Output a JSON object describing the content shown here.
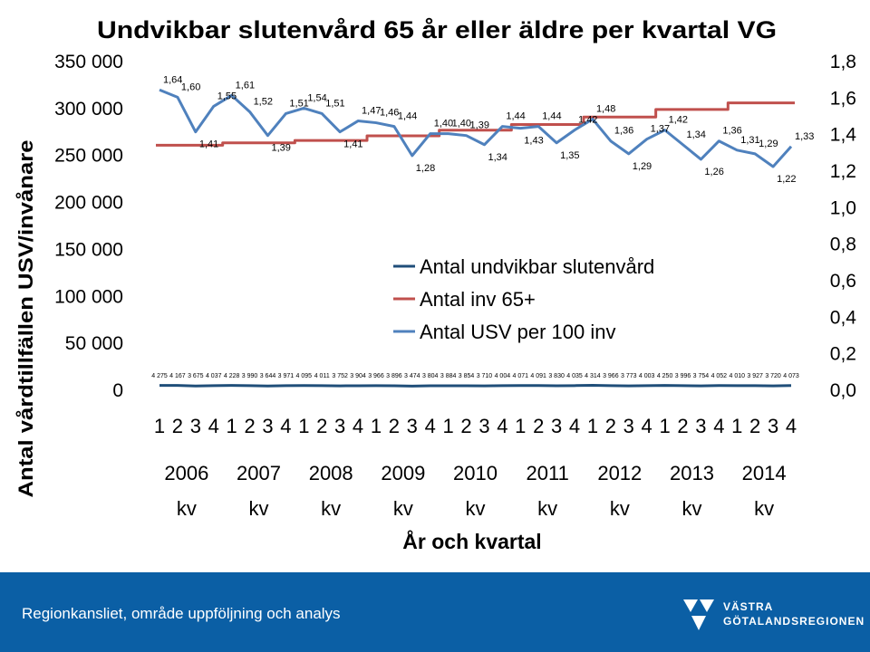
{
  "chart_data": {
    "type": "line",
    "title": "Undvikbar slutenvård 65 år eller äldre per kvartal VG",
    "ylabel": "Antal vårdtillfällen USV/invånare",
    "xlabel": "År och kvartal",
    "quarter_labels": [
      "1",
      "2",
      "3",
      "4",
      "1",
      "2",
      "3",
      "4",
      "1",
      "2",
      "3",
      "4",
      "1",
      "2",
      "3",
      "4",
      "1",
      "2",
      "3",
      "4",
      "1",
      "2",
      "3",
      "4",
      "1",
      "2",
      "3",
      "4",
      "1",
      "2",
      "3",
      "4",
      "1",
      "2",
      "3",
      "4"
    ],
    "year_labels": [
      {
        "year": "2006",
        "unit": "kv"
      },
      {
        "year": "2007",
        "unit": "kv"
      },
      {
        "year": "2008",
        "unit": "kv"
      },
      {
        "year": "2009",
        "unit": "kv"
      },
      {
        "year": "2010",
        "unit": "kv"
      },
      {
        "year": "2011",
        "unit": "kv"
      },
      {
        "year": "2012",
        "unit": "kv"
      },
      {
        "year": "2013",
        "unit": "kv"
      },
      {
        "year": "2014",
        "unit": "kv"
      }
    ],
    "y_left": {
      "ylim": [
        0,
        350000
      ],
      "ticks": [
        "0",
        "50 000",
        "100 000",
        "150 000",
        "200 000",
        "250 000",
        "300 000",
        "350 000"
      ]
    },
    "y_right": {
      "ylim": [
        0,
        1.8
      ],
      "ticks": [
        "0,0",
        "0,2",
        "0,4",
        "0,6",
        "0,8",
        "1,0",
        "1,2",
        "1,4",
        "1,6",
        "1,8"
      ]
    },
    "legend_position": "center",
    "series": [
      {
        "name": "Antal undvikbar slutenvård",
        "axis": "left",
        "color": "#1f4e79",
        "values": [
          4275,
          4167,
          3675,
          4037,
          4228,
          3990,
          3644,
          3971,
          4095,
          4011,
          3752,
          3904,
          3966,
          3896,
          3474,
          3804,
          3884,
          3854,
          3710,
          4004,
          4071,
          4091,
          3830,
          4035,
          4314,
          3966,
          3773,
          4003,
          4250,
          3996,
          3754,
          4052,
          4010,
          3927,
          3720,
          4073
        ],
        "labels": [
          "4 275",
          "4 167",
          "3 675",
          "4 037",
          "4 228",
          "3 990",
          "3 644",
          "3 971",
          "4 095",
          "4 011",
          "3 752",
          "3 904",
          "3 966",
          "3 896",
          "3 474",
          "3 804",
          "3 884",
          "3 854",
          "3 710",
          "4 004",
          "4 071",
          "4 091",
          "3 830",
          "4 035",
          "4 314",
          "3 966",
          "3 773",
          "4 003",
          "4 250",
          "3 996",
          "3 754",
          "4 052",
          "4 010",
          "3 927",
          "3 720",
          "4 073"
        ]
      },
      {
        "name": "Antal inv 65+",
        "axis": "left",
        "color": "#c0504d",
        "values": [
          260000,
          260000,
          260000,
          260000,
          262500,
          262500,
          262500,
          262500,
          265000,
          265000,
          265000,
          265000,
          270000,
          270000,
          270000,
          270000,
          276000,
          276000,
          276000,
          276000,
          282000,
          282000,
          282000,
          282000,
          290000,
          290000,
          290000,
          290000,
          298000,
          298000,
          298000,
          298000,
          305000,
          305000,
          305000,
          305000
        ]
      },
      {
        "name": "Antal USV per 100 inv",
        "axis": "right",
        "color": "#4f81bd",
        "values": [
          1.64,
          1.6,
          1.41,
          1.55,
          1.61,
          1.52,
          1.39,
          1.51,
          1.54,
          1.51,
          1.41,
          1.47,
          1.46,
          1.44,
          1.28,
          1.4,
          1.4,
          1.39,
          1.34,
          1.44,
          1.43,
          1.44,
          1.35,
          1.42,
          1.48,
          1.36,
          1.29,
          1.37,
          1.42,
          1.34,
          1.26,
          1.36,
          1.31,
          1.29,
          1.22,
          1.33
        ],
        "labels": [
          "1,64",
          "1,60",
          "1,41",
          "1,55",
          "1,61",
          "1,52",
          "1,39",
          "1,51",
          "1,54",
          "1,51",
          "1,41",
          "1,47",
          "1,46",
          "1,44",
          "1,28",
          "1,40",
          "1,40",
          "1,39",
          "1,34",
          "1,44",
          "1,43",
          "1,44",
          "1,35",
          "1,42",
          "1,48",
          "1,36",
          "1,29",
          "1,37",
          "1,42",
          "1,34",
          "1,26",
          "1,36",
          "1,31",
          "1,29",
          "1,22",
          "1,33"
        ]
      }
    ]
  },
  "footer": {
    "text": "Regionkansliet, område uppföljning och analys",
    "logo_line1": "VÄSTRA",
    "logo_line2": "GÖTALANDSREGIONEN",
    "logo_icon": "vgr-logo-icon",
    "background": "#0b5fa5"
  }
}
